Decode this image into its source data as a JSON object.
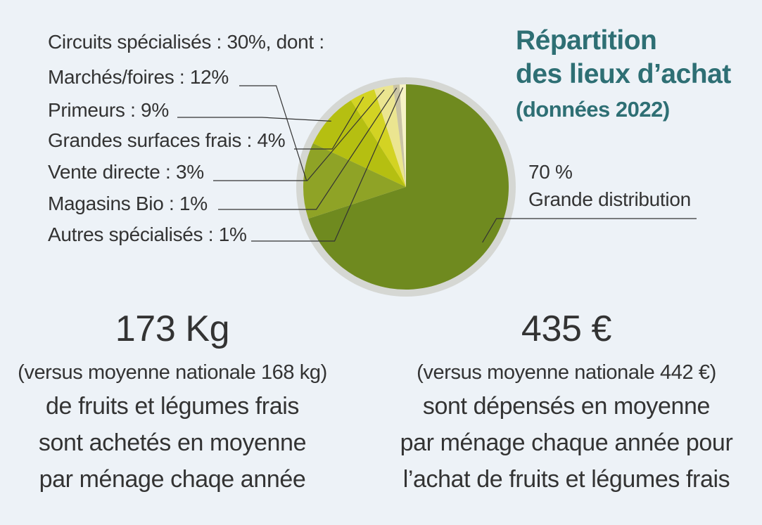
{
  "header": {
    "title_line1": "Répartition",
    "title_line2": "des lieux d’achat",
    "subtitle": "(données 2022)"
  },
  "chart_data": {
    "type": "pie",
    "title": "Répartition des lieux d’achat",
    "subtitle": "(données 2022)",
    "slices": [
      {
        "name": "Grande distribution",
        "value": 70,
        "color": "#6f8a1f"
      },
      {
        "name": "Marchés/foires",
        "value": 12,
        "color": "#8fa326"
      },
      {
        "name": "Primeurs",
        "value": 9,
        "color": "#b5bf11"
      },
      {
        "name": "Grandes surfaces frais",
        "value": 4,
        "color": "#d3d323"
      },
      {
        "name": "Vente directe",
        "value": 3,
        "color": "#ebe590"
      },
      {
        "name": "Magasins Bio",
        "value": 1,
        "color": "#c9c3a4"
      },
      {
        "name": "Autres spécialisés",
        "value": 1,
        "color": "#f6f3c6"
      }
    ],
    "group_label": "Circuits spécialisés : 30%, dont :",
    "labels": {
      "marches": "Marchés/foires : 12%",
      "primeurs": "Primeurs : 9%",
      "gsf": "Grandes surfaces frais : 4%",
      "vente": "Vente directe : 3%",
      "bio": "Magasins Bio : 1%",
      "autres": "Autres spécialisés : 1%",
      "gd_value": "70 %",
      "gd_name": "Grande distribution"
    }
  },
  "stats": {
    "left": {
      "value": "173 Kg",
      "comparison": "(versus moyenne nationale 168 kg)",
      "line1": "de fruits et légumes frais",
      "line2": "sont achetés en moyenne",
      "line3": "par ménage chaqe année"
    },
    "right": {
      "value": "435 €",
      "comparison": "(versus moyenne nationale 442 €)",
      "line1": "sont dépensés en moyenne",
      "line2": "par ménage chaque année pour",
      "line3": "l’achat de fruits et légumes frais"
    }
  },
  "colors": {
    "background": "#edf2f7",
    "ring": "#d5d7d3",
    "title": "#2e6f74",
    "text": "#333333"
  }
}
